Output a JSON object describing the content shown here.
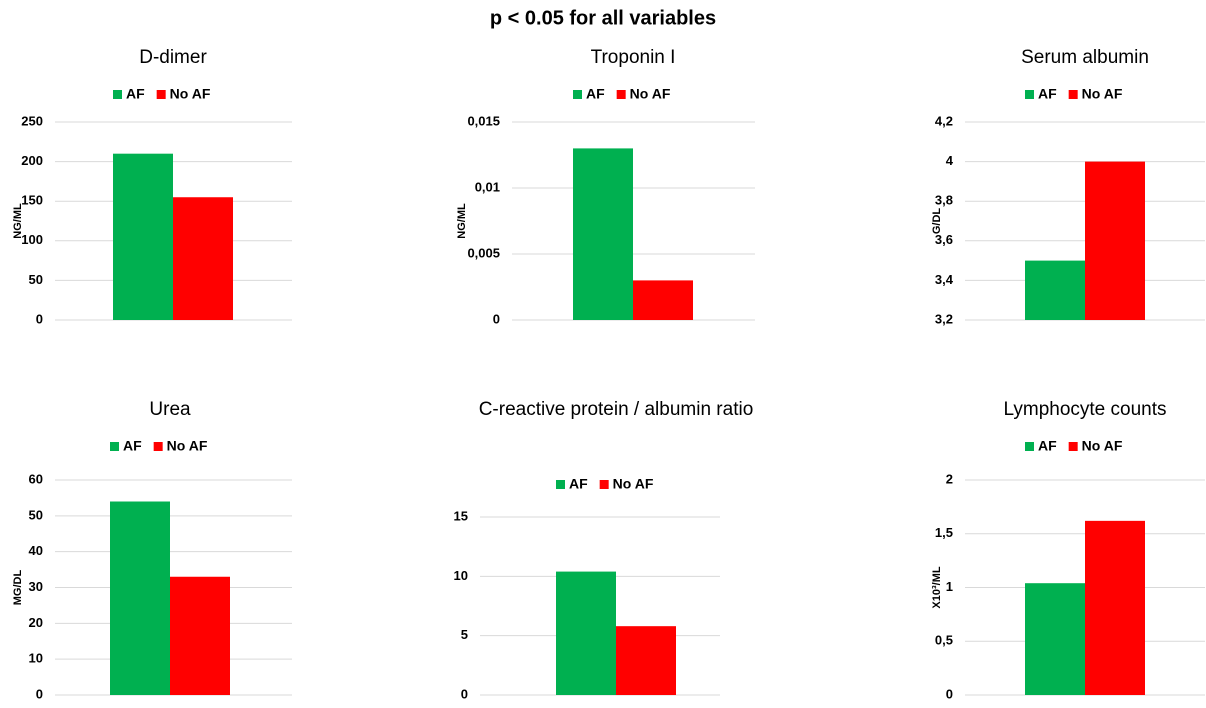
{
  "title": "p < 0.05 for all variables",
  "chart_data": [
    {
      "type": "bar",
      "title": "D-dimer",
      "ylabel": "NG/ML",
      "series": [
        {
          "name": "AF",
          "color": "#00b050",
          "values": [
            210
          ]
        },
        {
          "name": "No AF",
          "color": "#ff0000",
          "values": [
            155
          ]
        }
      ],
      "ylim": [
        0,
        250
      ],
      "yticks": [
        0,
        50,
        100,
        150,
        200,
        250
      ],
      "grid": true
    },
    {
      "type": "bar",
      "title": "Troponin I",
      "ylabel": "NG/ML",
      "series": [
        {
          "name": "AF",
          "color": "#00b050",
          "values": [
            0.013
          ]
        },
        {
          "name": "No AF",
          "color": "#ff0000",
          "values": [
            0.003
          ]
        }
      ],
      "ylim": [
        0,
        0.015
      ],
      "yticks": [
        0,
        {
          "value": 0.005,
          "label": "0,005"
        },
        {
          "value": 0.01,
          "label": "0,01"
        },
        {
          "value": 0.015,
          "label": "0,015"
        }
      ],
      "grid": true
    },
    {
      "type": "bar",
      "title": "Serum albumin",
      "ylabel": "G/DL",
      "series": [
        {
          "name": "AF",
          "color": "#00b050",
          "values": [
            3.5
          ]
        },
        {
          "name": "No AF",
          "color": "#ff0000",
          "values": [
            4.0
          ]
        }
      ],
      "ylim": [
        3.2,
        4.2
      ],
      "yticks": [
        {
          "value": 3.2,
          "label": "3,2"
        },
        {
          "value": 3.4,
          "label": "3,4"
        },
        {
          "value": 3.6,
          "label": "3,6"
        },
        {
          "value": 3.8,
          "label": "3,8"
        },
        4,
        {
          "value": 4.2,
          "label": "4,2"
        }
      ],
      "grid": true
    },
    {
      "type": "bar",
      "title": "Urea",
      "ylabel": "MG/DL",
      "series": [
        {
          "name": "AF",
          "color": "#00b050",
          "values": [
            54
          ]
        },
        {
          "name": "No AF",
          "color": "#ff0000",
          "values": [
            33
          ]
        }
      ],
      "ylim": [
        0,
        60
      ],
      "yticks": [
        0,
        10,
        20,
        30,
        40,
        50,
        60
      ],
      "grid": true
    },
    {
      "type": "bar",
      "title": "C-reactive protein / albumin ratio",
      "series": [
        {
          "name": "AF",
          "color": "#00b050",
          "values": [
            10.4
          ]
        },
        {
          "name": "No AF",
          "color": "#ff0000",
          "values": [
            5.8
          ]
        }
      ],
      "ylim": [
        0,
        15
      ],
      "yticks": [
        0,
        5,
        10,
        15
      ],
      "grid": true
    },
    {
      "type": "bar",
      "title": "Lymphocyte counts",
      "ylabel": "X10³/ML",
      "series": [
        {
          "name": "AF",
          "color": "#00b050",
          "values": [
            1.04
          ]
        },
        {
          "name": "No AF",
          "color": "#ff0000",
          "values": [
            1.62
          ]
        }
      ],
      "ylim": [
        0,
        2
      ],
      "yticks": [
        0,
        {
          "value": 0.5,
          "label": "0,5"
        },
        1,
        {
          "value": 1.5,
          "label": "1,5"
        },
        2
      ],
      "grid": true
    }
  ]
}
